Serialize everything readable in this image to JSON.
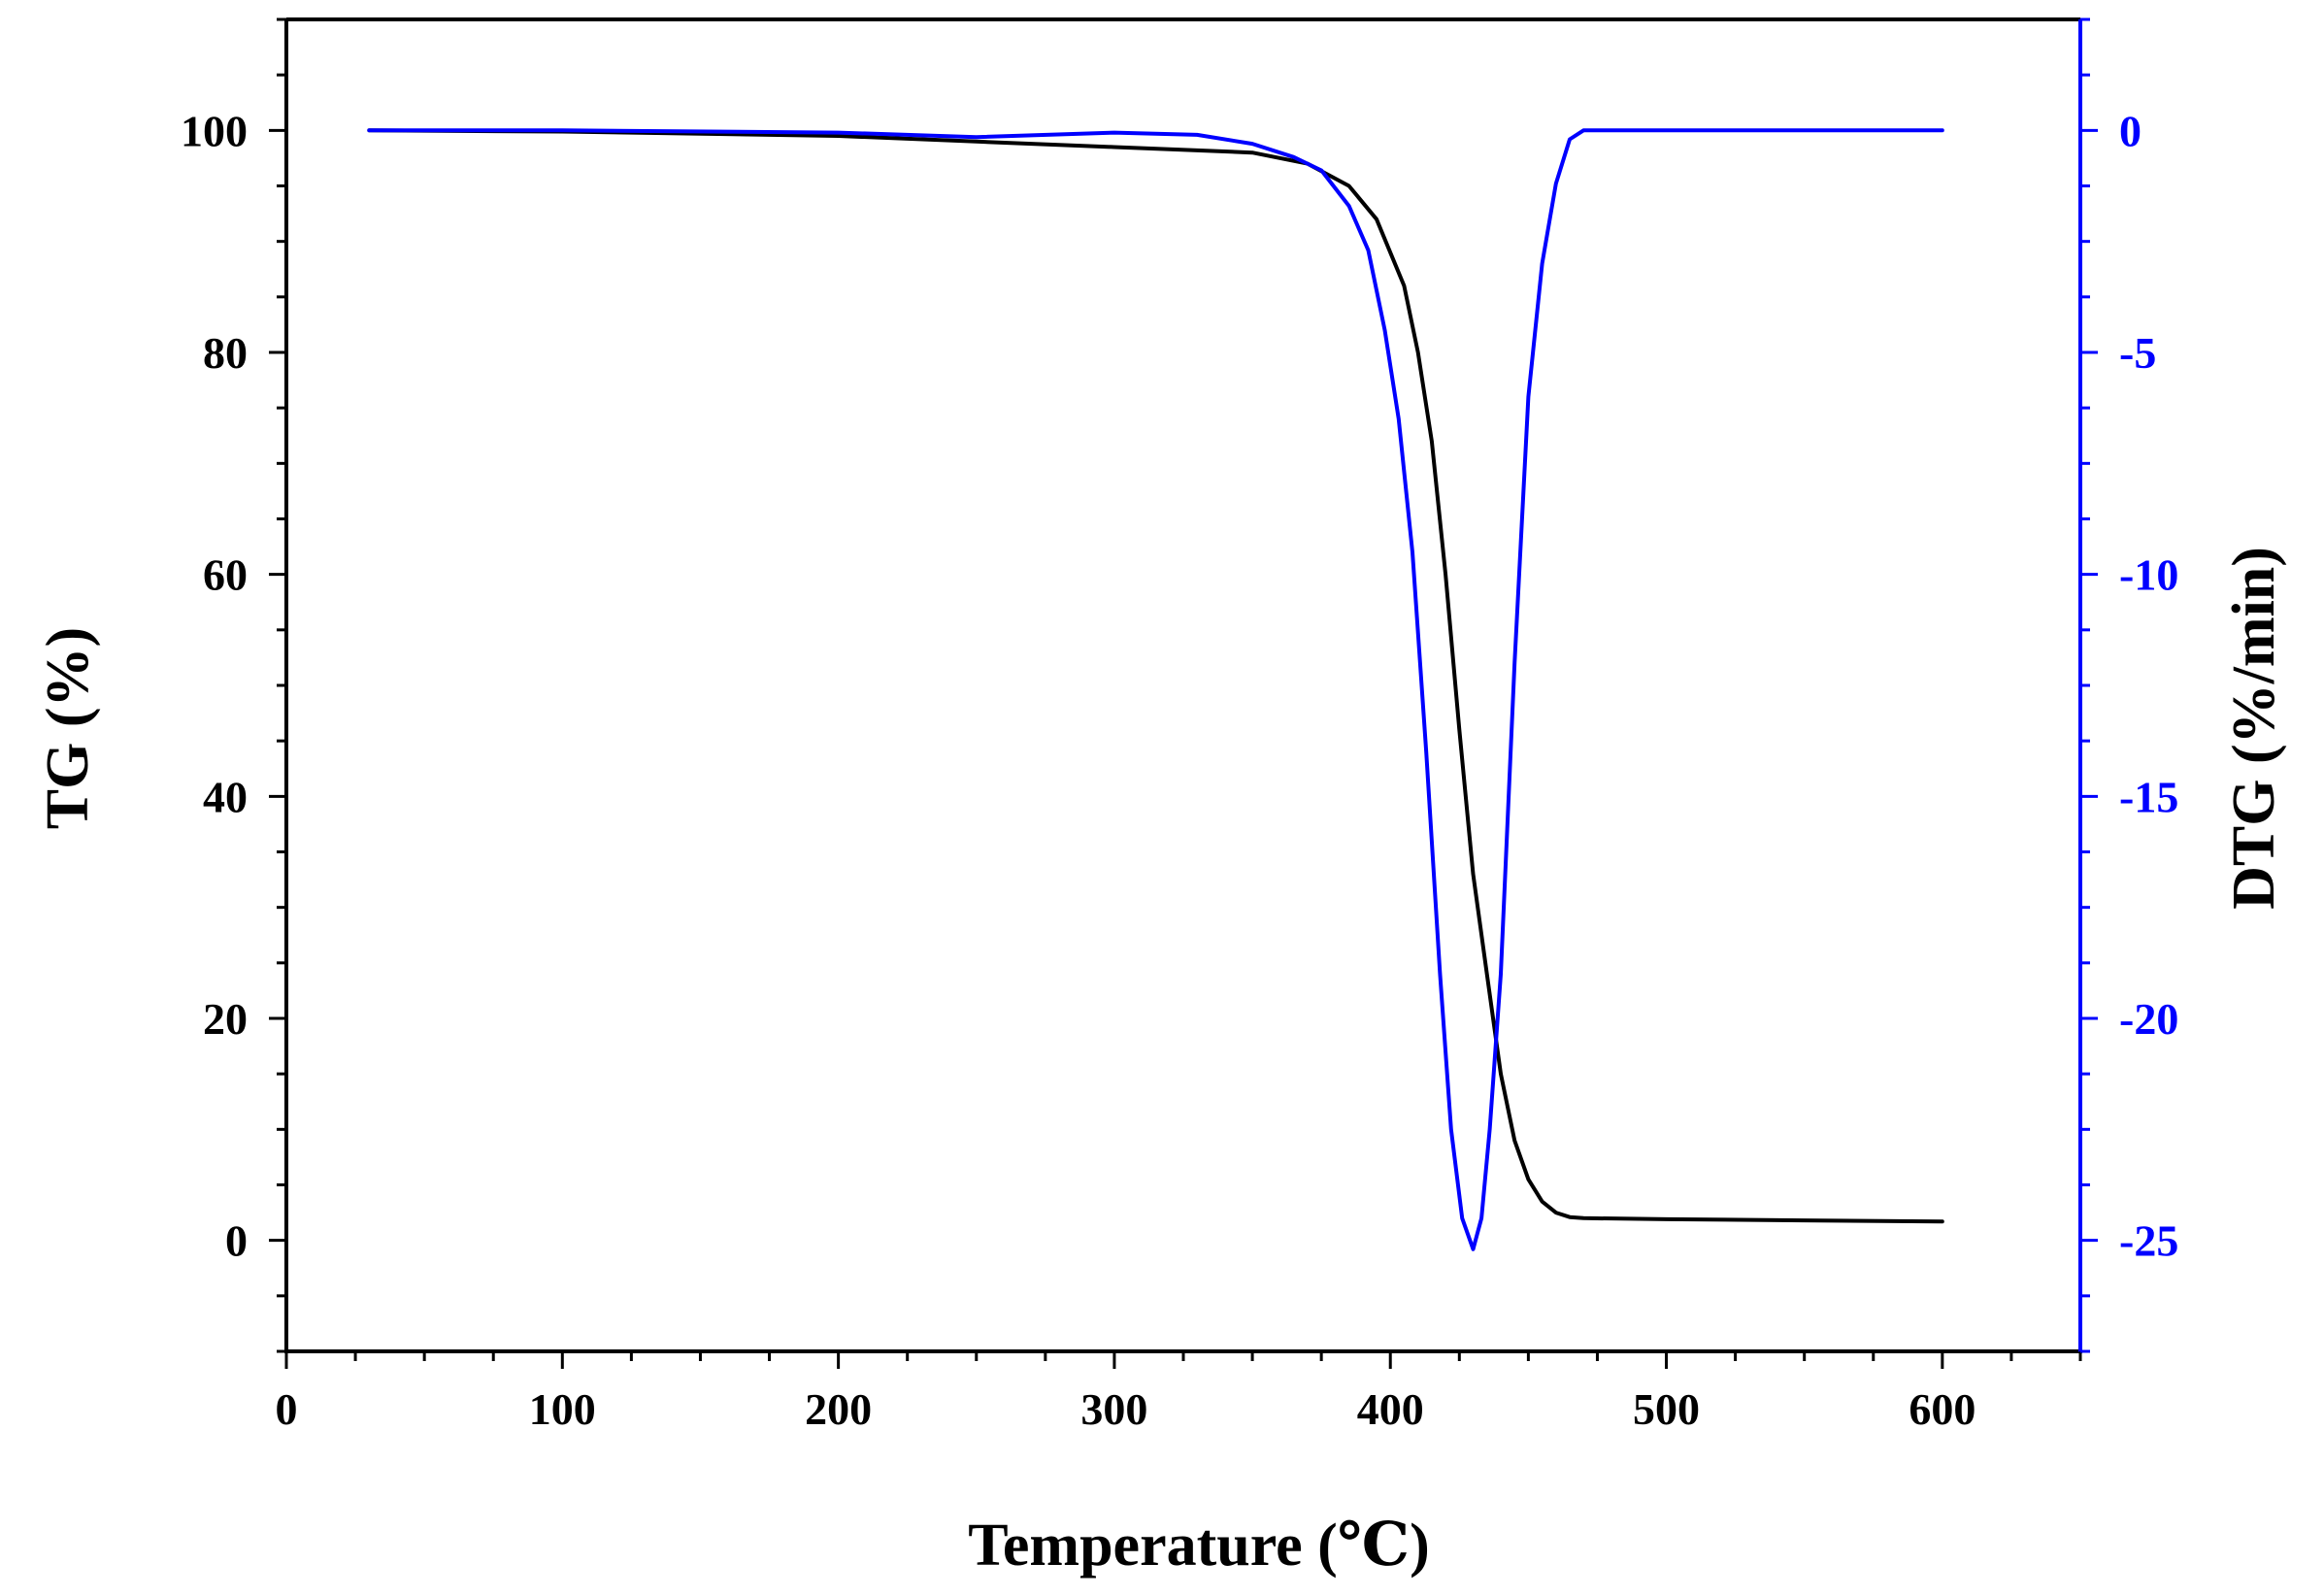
{
  "chart_data": {
    "type": "line",
    "xlabel": "Temperature (℃)",
    "ylabel": "TG (%)",
    "y2label": "DTG (%/min)",
    "xlim": [
      0,
      650
    ],
    "ylim": [
      -10,
      110
    ],
    "y2lim": [
      -27.5,
      2.5
    ],
    "x_ticks": [
      0,
      100,
      200,
      300,
      400,
      500,
      600
    ],
    "y_ticks": [
      0,
      20,
      40,
      60,
      80,
      100
    ],
    "y2_ticks": [
      0,
      -5,
      -10,
      -15,
      -20,
      -25
    ],
    "grid": false,
    "legend": "none",
    "series": [
      {
        "axis": "left",
        "color": "#000000",
        "points": [
          [
            30,
            100
          ],
          [
            100,
            99.9
          ],
          [
            200,
            99.5
          ],
          [
            250,
            99
          ],
          [
            300,
            98.5
          ],
          [
            350,
            98
          ],
          [
            370,
            97
          ],
          [
            385,
            95
          ],
          [
            395,
            92
          ],
          [
            405,
            86
          ],
          [
            410,
            80
          ],
          [
            415,
            72
          ],
          [
            420,
            60
          ],
          [
            425,
            46
          ],
          [
            430,
            33
          ],
          [
            435,
            24
          ],
          [
            440,
            15
          ],
          [
            445,
            9
          ],
          [
            450,
            5.5
          ],
          [
            455,
            3.5
          ],
          [
            460,
            2.5
          ],
          [
            465,
            2.1
          ],
          [
            470,
            2
          ],
          [
            500,
            1.9
          ],
          [
            550,
            1.8
          ],
          [
            600,
            1.7
          ]
        ]
      },
      {
        "axis": "right",
        "color": "#0000ff",
        "points": [
          [
            30,
            0
          ],
          [
            100,
            0
          ],
          [
            200,
            -0.05
          ],
          [
            250,
            -0.15
          ],
          [
            300,
            -0.05
          ],
          [
            330,
            -0.1
          ],
          [
            350,
            -0.3
          ],
          [
            365,
            -0.6
          ],
          [
            375,
            -0.9
          ],
          [
            385,
            -1.7
          ],
          [
            392,
            -2.7
          ],
          [
            398,
            -4.5
          ],
          [
            403,
            -6.5
          ],
          [
            408,
            -9.5
          ],
          [
            413,
            -14
          ],
          [
            418,
            -19
          ],
          [
            422,
            -22.5
          ],
          [
            426,
            -24.5
          ],
          [
            430,
            -25.2
          ],
          [
            433,
            -24.5
          ],
          [
            436,
            -22.5
          ],
          [
            440,
            -19
          ],
          [
            445,
            -12
          ],
          [
            450,
            -6
          ],
          [
            455,
            -3
          ],
          [
            460,
            -1.2
          ],
          [
            465,
            -0.2
          ],
          [
            470,
            0
          ],
          [
            500,
            0
          ],
          [
            600,
            0
          ]
        ]
      }
    ]
  }
}
